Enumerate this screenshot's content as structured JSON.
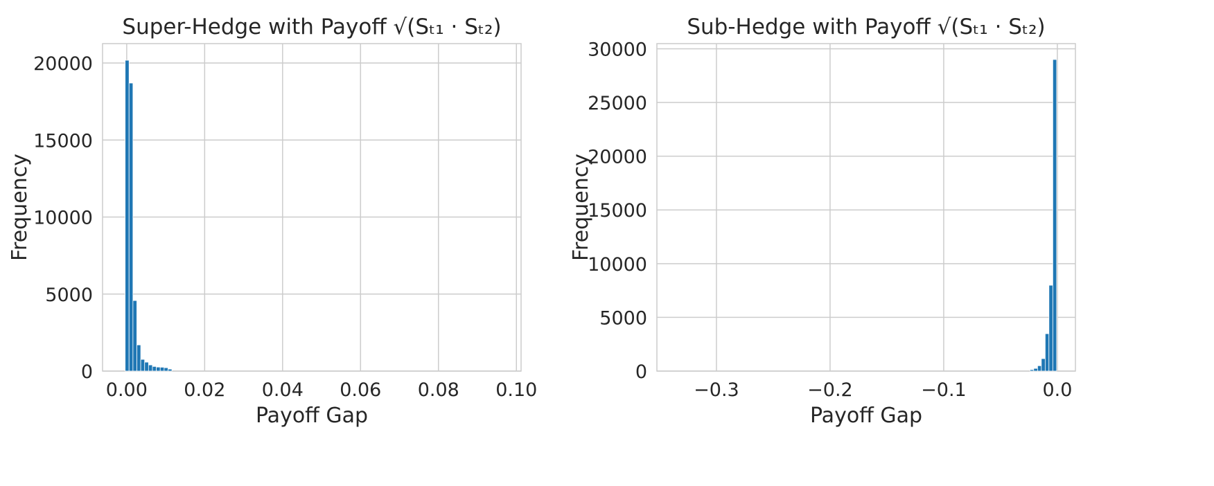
{
  "chart_data": [
    {
      "type": "histogram",
      "title": "Super-Hedge with Payoff √(Sₜ₁ · Sₜ₂)",
      "xlabel": "Payoff Gap",
      "ylabel": "Frequency",
      "bins": [
        -0.0004,
        0.0006,
        0.0016,
        0.0026,
        0.0036,
        0.0046,
        0.0056,
        0.0066,
        0.0076,
        0.0086,
        0.0096,
        0.0106,
        0.0116
      ],
      "values": [
        20180,
        18700,
        4580,
        1700,
        760,
        580,
        400,
        300,
        260,
        250,
        220,
        130
      ],
      "color": "#1f77b4",
      "grid": true,
      "xlim": [
        -0.0062,
        0.1012
      ],
      "ylim": [
        0,
        21260
      ],
      "xticks": [
        {
          "value": 0,
          "label": "0.00"
        },
        {
          "value": 0.02,
          "label": "0.02"
        },
        {
          "value": 0.04,
          "label": "0.04"
        },
        {
          "value": 0.06,
          "label": "0.06"
        },
        {
          "value": 0.08,
          "label": "0.08"
        },
        {
          "value": 0.1,
          "label": "0.10"
        }
      ],
      "yticks": [
        0,
        5000,
        10000,
        15000,
        20000
      ]
    },
    {
      "type": "histogram",
      "title": "Sub-Hedge with Payoff √(Sₜ₁ · Sₜ₂)",
      "xlabel": "Payoff Gap",
      "ylabel": "Frequency",
      "bins": [
        -0.0241,
        -0.0208,
        -0.0174,
        -0.0141,
        -0.0107,
        -0.0074,
        -0.004,
        -0.0006
      ],
      "values": [
        130,
        250,
        500,
        1160,
        3480,
        7990,
        29000
      ],
      "color": "#1f77b4",
      "grid": true,
      "xlim": [
        -0.3524,
        0.0159
      ],
      "ylim": [
        0,
        30480
      ],
      "xticks": [
        {
          "value": -0.3,
          "label": "−0.3"
        },
        {
          "value": -0.2,
          "label": "−0.2"
        },
        {
          "value": -0.1,
          "label": "−0.1"
        },
        {
          "value": 0,
          "label": "0.0"
        }
      ],
      "yticks": [
        0,
        5000,
        10000,
        15000,
        20000,
        25000,
        30000
      ]
    }
  ]
}
